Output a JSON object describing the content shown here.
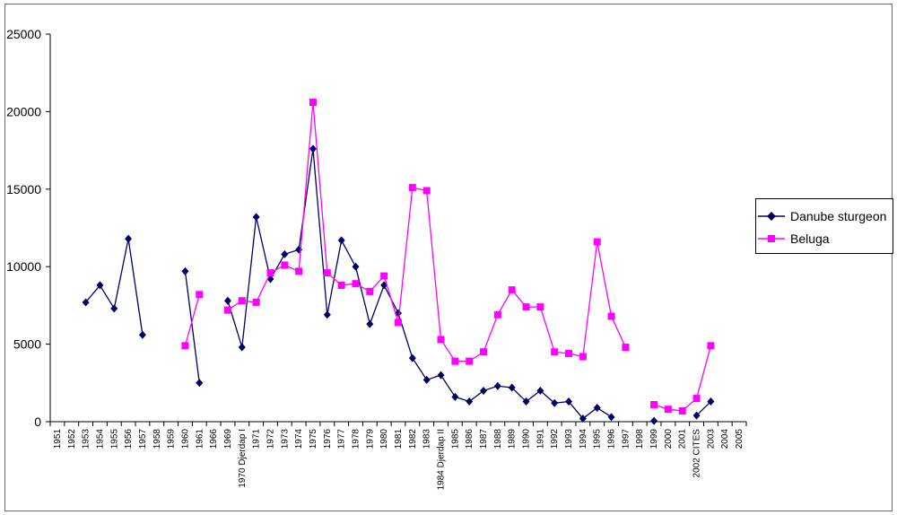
{
  "chart_data": {
    "type": "line",
    "title": "",
    "xlabel": "",
    "ylabel": "",
    "ylim": [
      0,
      25000
    ],
    "yticks": [
      0,
      5000,
      10000,
      15000,
      20000,
      25000
    ],
    "categories": [
      "1951",
      "1952",
      "1953",
      "1954",
      "1955",
      "1956",
      "1957",
      "1958",
      "1959",
      "1960",
      "1961",
      "1966",
      "1969",
      "1970 Djerdap I",
      "1971",
      "1972",
      "1973",
      "1974",
      "1975",
      "1976",
      "1977",
      "1978",
      "1979",
      "1980",
      "1981",
      "1982",
      "1983",
      "1984 Djerdap II",
      "1985",
      "1986",
      "1987",
      "1988",
      "1989",
      "1990",
      "1991",
      "1992",
      "1993",
      "1994",
      "1995",
      "1996",
      "1997",
      "1998",
      "1999",
      "2000",
      "2001",
      "2002 CITES",
      "2003",
      "2004",
      "2005"
    ],
    "series": [
      {
        "name": "Danube sturgeon",
        "color": "#000066",
        "marker": "diamond",
        "values": [
          null,
          null,
          7700,
          8800,
          7300,
          11800,
          5600,
          null,
          null,
          9700,
          2500,
          null,
          7800,
          4800,
          13200,
          9200,
          10800,
          11100,
          17600,
          6900,
          11700,
          10000,
          6300,
          8800,
          7000,
          4100,
          2700,
          3000,
          1600,
          1300,
          2000,
          2300,
          2200,
          1300,
          2000,
          1200,
          1300,
          200,
          900,
          300,
          null,
          null,
          50,
          null,
          null,
          400,
          1300,
          null,
          null
        ]
      },
      {
        "name": "Beluga",
        "color": "#ff00ff",
        "marker": "square",
        "values": [
          null,
          null,
          null,
          null,
          null,
          null,
          null,
          null,
          null,
          4900,
          8200,
          null,
          7200,
          7800,
          7700,
          9600,
          10100,
          9700,
          20600,
          9600,
          8800,
          8900,
          8400,
          9400,
          6400,
          15100,
          14900,
          5300,
          3900,
          3900,
          4500,
          6900,
          8500,
          7400,
          7400,
          4500,
          4400,
          4200,
          11600,
          6800,
          4800,
          null,
          1100,
          800,
          700,
          1500,
          4900,
          null,
          null
        ]
      }
    ],
    "legend": "right"
  }
}
